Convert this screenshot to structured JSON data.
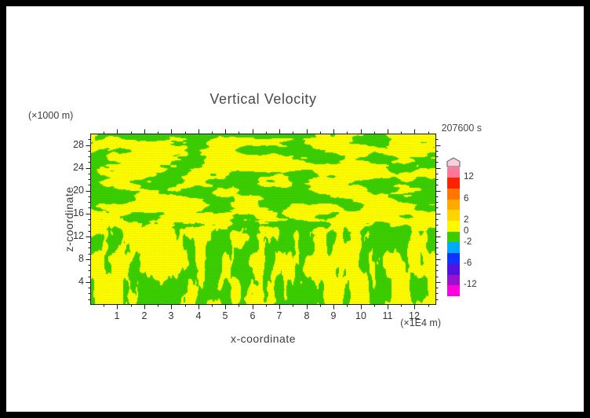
{
  "chart_data": {
    "type": "heatmap",
    "title": "Vertical Velocity",
    "time_label": "207600 s",
    "xlabel": "x-coordinate",
    "ylabel": "z-coordinate",
    "x_unit_label": "(×1E4 m)",
    "y_unit_label": "(×1000 m)",
    "xlim": [
      0,
      12.8
    ],
    "ylim": [
      0,
      30
    ],
    "x_ticks": [
      1,
      2,
      3,
      4,
      5,
      6,
      7,
      8,
      9,
      10,
      11,
      12
    ],
    "y_ticks": [
      4,
      8,
      12,
      16,
      20,
      24,
      28
    ],
    "grid": false,
    "legend_position": "right-colorbar",
    "field": {
      "description": "2-D vertical-velocity cross-section: predominantly yellow (values 0 to +2) with irregular green patches (values -2 to 0); horizontally elongated wave-like green bands in the upper half of the domain and narrower vertical plume-like green streaks in the lower third; fine stipple texture over the whole field",
      "positive_band_color": "#fffa00",
      "negative_band_color": "#3bcd00",
      "dominant_value_range": [
        -2,
        2
      ]
    },
    "colorbar": {
      "labels": [
        12,
        6,
        2,
        0,
        -2,
        -6,
        -12
      ],
      "boundaries": [
        -12,
        -9,
        -6,
        -4,
        -2,
        0,
        2,
        4,
        6,
        9,
        12
      ],
      "segments_bottom_to_top": [
        {
          "range": "below -12",
          "color": "#ff00dd"
        },
        {
          "range": "-12 to -9",
          "color": "#9911cc"
        },
        {
          "range": "-9 to -6",
          "color": "#5511dd"
        },
        {
          "range": "-6 to -4",
          "color": "#1133ff"
        },
        {
          "range": "-4 to -2",
          "color": "#00aaff"
        },
        {
          "range": "-2 to 0",
          "color": "#3bcd00"
        },
        {
          "range": "0 to 2",
          "color": "#fffa00"
        },
        {
          "range": "2 to 4",
          "color": "#ffd500"
        },
        {
          "range": "4 to 6",
          "color": "#ffaa00"
        },
        {
          "range": "6 to 9",
          "color": "#ff7700"
        },
        {
          "range": "9 to 12",
          "color": "#ff2200"
        },
        {
          "range": "above 12",
          "color": "#ff7799"
        }
      ],
      "arrow_color": "#ffccdd"
    }
  },
  "colors": {
    "frame": "#000000",
    "background": "#ffffff",
    "axis": "#1a1a1a",
    "text": "#3d3d3d"
  }
}
